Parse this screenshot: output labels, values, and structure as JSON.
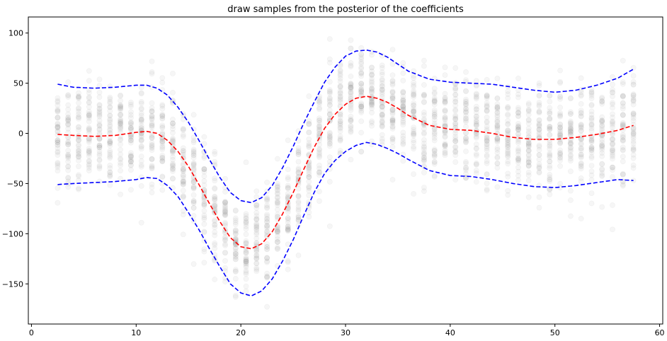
{
  "chart_data": {
    "type": "scatter",
    "title": "draw samples from the posterior of the coefficients",
    "xlabel": "",
    "ylabel": "",
    "xlim": [
      -0.3,
      60.3
    ],
    "ylim": [
      -190,
      116
    ],
    "xticks": [
      0,
      10,
      20,
      30,
      40,
      50,
      60
    ],
    "yticks": [
      -150,
      -100,
      -50,
      0,
      50,
      100
    ],
    "ytick_labels": [
      "−150",
      "−100",
      "−50",
      "0",
      "50",
      "100"
    ],
    "grid": false,
    "colors": {
      "mean_line": "#ff0000",
      "band_lines": "#0000ff",
      "points": "#808080"
    },
    "series": [
      {
        "kind": "line",
        "role": "mean",
        "style": "dashed",
        "x": [
          2.5,
          4,
          6,
          8,
          10,
          11,
          12,
          13,
          14,
          15,
          16,
          17,
          18,
          19,
          20,
          21,
          22,
          23,
          24,
          25,
          26,
          27,
          28,
          29,
          30,
          31,
          32,
          33,
          34,
          35,
          36,
          38,
          40,
          42,
          44,
          46,
          48,
          50,
          52,
          54,
          56,
          57.5
        ],
        "y": [
          -1,
          -2,
          -3,
          -2,
          1,
          2,
          0,
          -7,
          -18,
          -33,
          -51,
          -70,
          -88,
          -104,
          -113,
          -115,
          -110,
          -98,
          -80,
          -59,
          -36,
          -14,
          5,
          19,
          29,
          35,
          37,
          35,
          31,
          25,
          18,
          8,
          4,
          3,
          0,
          -4,
          -6,
          -6,
          -4,
          -1,
          3,
          8
        ]
      },
      {
        "kind": "line",
        "role": "upper",
        "style": "dashed",
        "x": [
          2.5,
          4,
          6,
          8,
          10,
          11,
          12,
          13,
          14,
          15,
          16,
          17,
          18,
          19,
          20,
          21,
          22,
          23,
          24,
          25,
          26,
          27,
          28,
          29,
          30,
          31,
          32,
          33,
          34,
          35,
          36,
          38,
          40,
          42,
          44,
          46,
          48,
          50,
          52,
          54,
          56,
          57.5
        ],
        "y": [
          49,
          46,
          45,
          46,
          48,
          48,
          45,
          38,
          26,
          11,
          -7,
          -26,
          -44,
          -59,
          -67,
          -69,
          -64,
          -52,
          -34,
          -13,
          10,
          31,
          51,
          66,
          77,
          82,
          83,
          81,
          76,
          69,
          62,
          54,
          51,
          50,
          49,
          46,
          43,
          41,
          43,
          48,
          55,
          64
        ]
      },
      {
        "kind": "line",
        "role": "lower",
        "style": "dashed",
        "x": [
          2.5,
          4,
          6,
          8,
          10,
          11,
          12,
          13,
          14,
          15,
          16,
          17,
          18,
          19,
          20,
          21,
          22,
          23,
          24,
          25,
          26,
          27,
          28,
          29,
          30,
          31,
          32,
          33,
          34,
          35,
          36,
          38,
          40,
          42,
          44,
          46,
          48,
          50,
          52,
          54,
          56,
          57.5
        ],
        "y": [
          -51,
          -50,
          -49,
          -48,
          -46,
          -44,
          -45,
          -52,
          -63,
          -79,
          -96,
          -115,
          -133,
          -150,
          -159,
          -162,
          -157,
          -145,
          -127,
          -106,
          -82,
          -59,
          -40,
          -27,
          -18,
          -12,
          -9,
          -11,
          -15,
          -20,
          -26,
          -37,
          -42,
          -43,
          -46,
          -50,
          -53,
          -54,
          -52,
          -49,
          -46,
          -47
        ]
      }
    ],
    "scatter_points": {
      "x_grid": [
        2.5,
        57.5
      ],
      "n_x": 56,
      "y_spread": 52
    }
  }
}
